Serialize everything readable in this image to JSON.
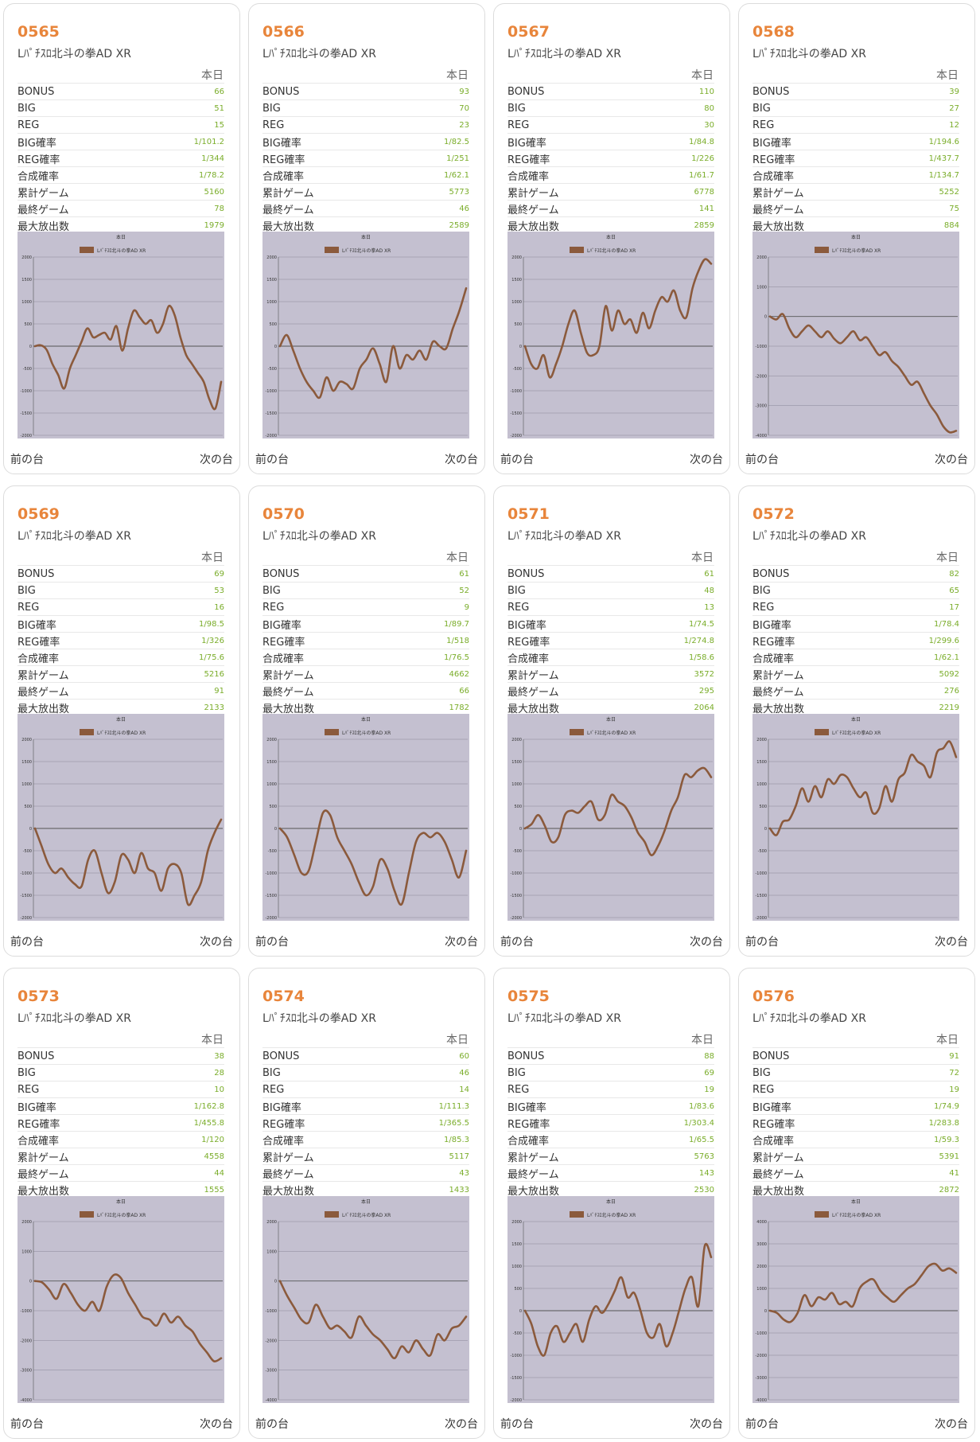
{
  "labels": {
    "column_today": "本日",
    "prev": "前の台",
    "next": "次の台",
    "chart_title": "本日",
    "rows": [
      "BONUS",
      "BIG",
      "REG",
      "BIG確率",
      "REG確率",
      "合成確率",
      "累計ゲーム",
      "最終ゲーム",
      "最大放出数"
    ]
  },
  "colors": {
    "accent": "#e8853b",
    "value": "#7aad2a",
    "line": "#8b5a3c",
    "plot_bg": "#c4c0d0"
  },
  "machines": [
    {
      "number": "0565",
      "name": "Lﾊﾟﾁｽﾛ北斗の拳AD XR",
      "stats": [
        "66",
        "51",
        "15",
        "1/101.2",
        "1/344",
        "1/78.2",
        "5160",
        "78",
        "1979"
      ]
    },
    {
      "number": "0566",
      "name": "Lﾊﾟﾁｽﾛ北斗の拳AD XR",
      "stats": [
        "93",
        "70",
        "23",
        "1/82.5",
        "1/251",
        "1/62.1",
        "5773",
        "46",
        "2589"
      ]
    },
    {
      "number": "0567",
      "name": "Lﾊﾟﾁｽﾛ北斗の拳AD XR",
      "stats": [
        "110",
        "80",
        "30",
        "1/84.8",
        "1/226",
        "1/61.7",
        "6778",
        "141",
        "2859"
      ]
    },
    {
      "number": "0568",
      "name": "Lﾊﾟﾁｽﾛ北斗の拳AD XR",
      "stats": [
        "39",
        "27",
        "12",
        "1/194.6",
        "1/437.7",
        "1/134.7",
        "5252",
        "75",
        "884"
      ]
    },
    {
      "number": "0569",
      "name": "Lﾊﾟﾁｽﾛ北斗の拳AD XR",
      "stats": [
        "69",
        "53",
        "16",
        "1/98.5",
        "1/326",
        "1/75.6",
        "5216",
        "91",
        "2133"
      ]
    },
    {
      "number": "0570",
      "name": "Lﾊﾟﾁｽﾛ北斗の拳AD XR",
      "stats": [
        "61",
        "52",
        "9",
        "1/89.7",
        "1/518",
        "1/76.5",
        "4662",
        "66",
        "1782"
      ]
    },
    {
      "number": "0571",
      "name": "Lﾊﾟﾁｽﾛ北斗の拳AD XR",
      "stats": [
        "61",
        "48",
        "13",
        "1/74.5",
        "1/274.8",
        "1/58.6",
        "3572",
        "295",
        "2064"
      ]
    },
    {
      "number": "0572",
      "name": "Lﾊﾟﾁｽﾛ北斗の拳AD XR",
      "stats": [
        "82",
        "65",
        "17",
        "1/78.4",
        "1/299.6",
        "1/62.1",
        "5092",
        "276",
        "2219"
      ]
    },
    {
      "number": "0573",
      "name": "Lﾊﾟﾁｽﾛ北斗の拳AD XR",
      "stats": [
        "38",
        "28",
        "10",
        "1/162.8",
        "1/455.8",
        "1/120",
        "4558",
        "44",
        "1555"
      ]
    },
    {
      "number": "0574",
      "name": "Lﾊﾟﾁｽﾛ北斗の拳AD XR",
      "stats": [
        "60",
        "46",
        "14",
        "1/111.3",
        "1/365.5",
        "1/85.3",
        "5117",
        "43",
        "1433"
      ]
    },
    {
      "number": "0575",
      "name": "Lﾊﾟﾁｽﾛ北斗の拳AD XR",
      "stats": [
        "88",
        "69",
        "19",
        "1/83.6",
        "1/303.4",
        "1/65.5",
        "5763",
        "143",
        "2530"
      ]
    },
    {
      "number": "0576",
      "name": "Lﾊﾟﾁｽﾛ北斗の拳AD XR",
      "stats": [
        "91",
        "72",
        "19",
        "1/74.9",
        "1/283.8",
        "1/59.3",
        "5391",
        "41",
        "2872"
      ]
    }
  ],
  "chart_data": [
    {
      "type": "line",
      "title": "本日",
      "legend": "Lﾊﾟﾁｽﾛ北斗の拳AD XR",
      "ylim": [
        -2000,
        2000
      ],
      "yticks": [
        2000,
        1500,
        1000,
        500,
        0,
        -500,
        -1000,
        -1500,
        -2000
      ],
      "values": [
        0,
        20,
        -80,
        -400,
        -650,
        -950,
        -500,
        -200,
        100,
        400,
        200,
        250,
        300,
        150,
        450,
        -100,
        400,
        800,
        650,
        500,
        580,
        300,
        500,
        900,
        700,
        200,
        -200,
        -400,
        -600,
        -800,
        -1200,
        -1400,
        -800
      ]
    },
    {
      "type": "line",
      "title": "本日",
      "legend": "Lﾊﾟﾁｽﾛ北斗の拳AD XR",
      "ylim": [
        -2000,
        2000
      ],
      "yticks": [
        2000,
        1500,
        1000,
        500,
        0,
        -500,
        -1000,
        -1500,
        -2000
      ],
      "values": [
        0,
        250,
        -100,
        -500,
        -800,
        -1000,
        -1150,
        -700,
        -1000,
        -800,
        -850,
        -950,
        -500,
        -300,
        -50,
        -400,
        -800,
        0,
        -500,
        -200,
        -300,
        -100,
        -300,
        100,
        0,
        -50,
        400,
        800,
        1300
      ]
    },
    {
      "type": "line",
      "title": "本日",
      "legend": "Lﾊﾟﾁｽﾛ北斗の拳AD XR",
      "ylim": [
        -2000,
        2000
      ],
      "yticks": [
        2000,
        1500,
        1000,
        500,
        0,
        -500,
        -1000,
        -1500,
        -2000
      ],
      "values": [
        0,
        -400,
        -500,
        -200,
        -700,
        -400,
        0,
        500,
        800,
        300,
        -150,
        -200,
        0,
        900,
        350,
        800,
        500,
        600,
        300,
        750,
        400,
        800,
        1100,
        1000,
        1250,
        800,
        650,
        1300,
        1700,
        1950,
        1850
      ]
    },
    {
      "type": "line",
      "title": "本日",
      "legend": "Lﾊﾟﾁｽﾛ北斗の拳AD XR",
      "ylim": [
        -4000,
        2000
      ],
      "yticks": [
        2000,
        1000,
        0,
        -1000,
        -2000,
        -3000,
        -4000
      ],
      "values": [
        0,
        -100,
        80,
        -400,
        -700,
        -500,
        -300,
        -500,
        -700,
        -500,
        -750,
        -900,
        -700,
        -500,
        -800,
        -700,
        -1000,
        -1300,
        -1200,
        -1500,
        -1700,
        -2000,
        -2300,
        -2200,
        -2600,
        -3000,
        -3300,
        -3700,
        -3900,
        -3850
      ]
    },
    {
      "type": "line",
      "title": "本日",
      "legend": "Lﾊﾟﾁｽﾛ北斗の拳AD XR",
      "ylim": [
        -2000,
        2000
      ],
      "yticks": [
        2000,
        1500,
        1000,
        500,
        0,
        -500,
        -1000,
        -1500,
        -2000
      ],
      "values": [
        0,
        -400,
        -800,
        -1000,
        -900,
        -1100,
        -1250,
        -1300,
        -700,
        -500,
        -1000,
        -1450,
        -1200,
        -600,
        -700,
        -1000,
        -550,
        -900,
        -1000,
        -1400,
        -900,
        -800,
        -1000,
        -1700,
        -1500,
        -1200,
        -500,
        -100,
        200
      ]
    },
    {
      "type": "line",
      "title": "本日",
      "legend": "Lﾊﾟﾁｽﾛ北斗の拳AD XR",
      "ylim": [
        -2000,
        2000
      ],
      "yticks": [
        2000,
        1500,
        1000,
        500,
        0,
        -500,
        -1000,
        -1500,
        -2000
      ],
      "values": [
        0,
        -200,
        -600,
        -1000,
        -950,
        -300,
        350,
        300,
        -200,
        -500,
        -800,
        -1200,
        -1500,
        -1300,
        -700,
        -900,
        -1400,
        -1700,
        -1000,
        -300,
        -100,
        -200,
        -100,
        -300,
        -700,
        -1100,
        -500
      ]
    },
    {
      "type": "line",
      "title": "本日",
      "legend": "Lﾊﾟﾁｽﾛ北斗の拳AD XR",
      "ylim": [
        -2000,
        2000
      ],
      "yticks": [
        2000,
        1500,
        1000,
        500,
        0,
        -500,
        -1000,
        -1500,
        -2000
      ],
      "values": [
        0,
        100,
        300,
        50,
        -300,
        -200,
        300,
        400,
        350,
        500,
        600,
        200,
        300,
        750,
        600,
        500,
        250,
        -100,
        -300,
        -600,
        -400,
        -50,
        400,
        700,
        1200,
        1150,
        1300,
        1350,
        1150
      ]
    },
    {
      "type": "line",
      "title": "本日",
      "legend": "Lﾊﾟﾁｽﾛ北斗の拳AD XR",
      "ylim": [
        -2000,
        2000
      ],
      "yticks": [
        2000,
        1500,
        1000,
        500,
        0,
        -500,
        -1000,
        -1500,
        -2000
      ],
      "values": [
        0,
        -150,
        150,
        200,
        500,
        900,
        600,
        950,
        700,
        1100,
        1000,
        1200,
        1150,
        900,
        700,
        800,
        350,
        450,
        950,
        600,
        1100,
        1250,
        1650,
        1500,
        1400,
        1150,
        1700,
        1800,
        1950,
        1600
      ]
    },
    {
      "type": "line",
      "title": "本日",
      "legend": "Lﾊﾟﾁｽﾛ北斗の拳AD XR",
      "ylim": [
        -4000,
        2000
      ],
      "yticks": [
        2000,
        1000,
        0,
        -1000,
        -2000,
        -3000,
        -4000
      ],
      "values": [
        0,
        -50,
        -300,
        -600,
        -100,
        -400,
        -800,
        -1000,
        -700,
        -1000,
        -200,
        200,
        100,
        -400,
        -800,
        -1200,
        -1300,
        -1500,
        -1100,
        -1400,
        -1200,
        -1500,
        -1700,
        -2100,
        -2400,
        -2700,
        -2600
      ]
    },
    {
      "type": "line",
      "title": "本日",
      "legend": "Lﾊﾟﾁｽﾛ北斗の拳AD XR",
      "ylim": [
        -4000,
        2000
      ],
      "yticks": [
        2000,
        1000,
        0,
        -1000,
        -2000,
        -3000,
        -4000
      ],
      "values": [
        0,
        -500,
        -900,
        -1300,
        -1400,
        -800,
        -1200,
        -1600,
        -1500,
        -1700,
        -1900,
        -1200,
        -1500,
        -1800,
        -2000,
        -2300,
        -2600,
        -2200,
        -2400,
        -2000,
        -2300,
        -2500,
        -1800,
        -2000,
        -1600,
        -1500,
        -1200
      ]
    },
    {
      "type": "line",
      "title": "本日",
      "legend": "Lﾊﾟﾁｽﾛ北斗の拳AD XR",
      "ylim": [
        -2000,
        2000
      ],
      "yticks": [
        2000,
        1500,
        1000,
        500,
        0,
        -500,
        -1000,
        -1500,
        -2000
      ],
      "values": [
        0,
        -300,
        -800,
        -1000,
        -500,
        -350,
        -700,
        -500,
        -300,
        -700,
        -200,
        100,
        -50,
        150,
        450,
        750,
        300,
        400,
        0,
        -500,
        -600,
        -300,
        -800,
        -500,
        0,
        500,
        750,
        100,
        1450,
        1200
      ]
    },
    {
      "type": "line",
      "title": "本日",
      "legend": "Lﾊﾟﾁｽﾛ北斗の拳AD XR",
      "ylim": [
        -4000,
        4000
      ],
      "yticks": [
        4000,
        3000,
        2000,
        1000,
        0,
        -1000,
        -2000,
        -3000,
        -4000
      ],
      "values": [
        0,
        -100,
        -400,
        -500,
        -100,
        700,
        200,
        600,
        500,
        800,
        300,
        400,
        200,
        1000,
        1300,
        1400,
        900,
        600,
        400,
        700,
        1000,
        1200,
        1600,
        2000,
        2100,
        1800,
        1900,
        1700
      ]
    }
  ]
}
